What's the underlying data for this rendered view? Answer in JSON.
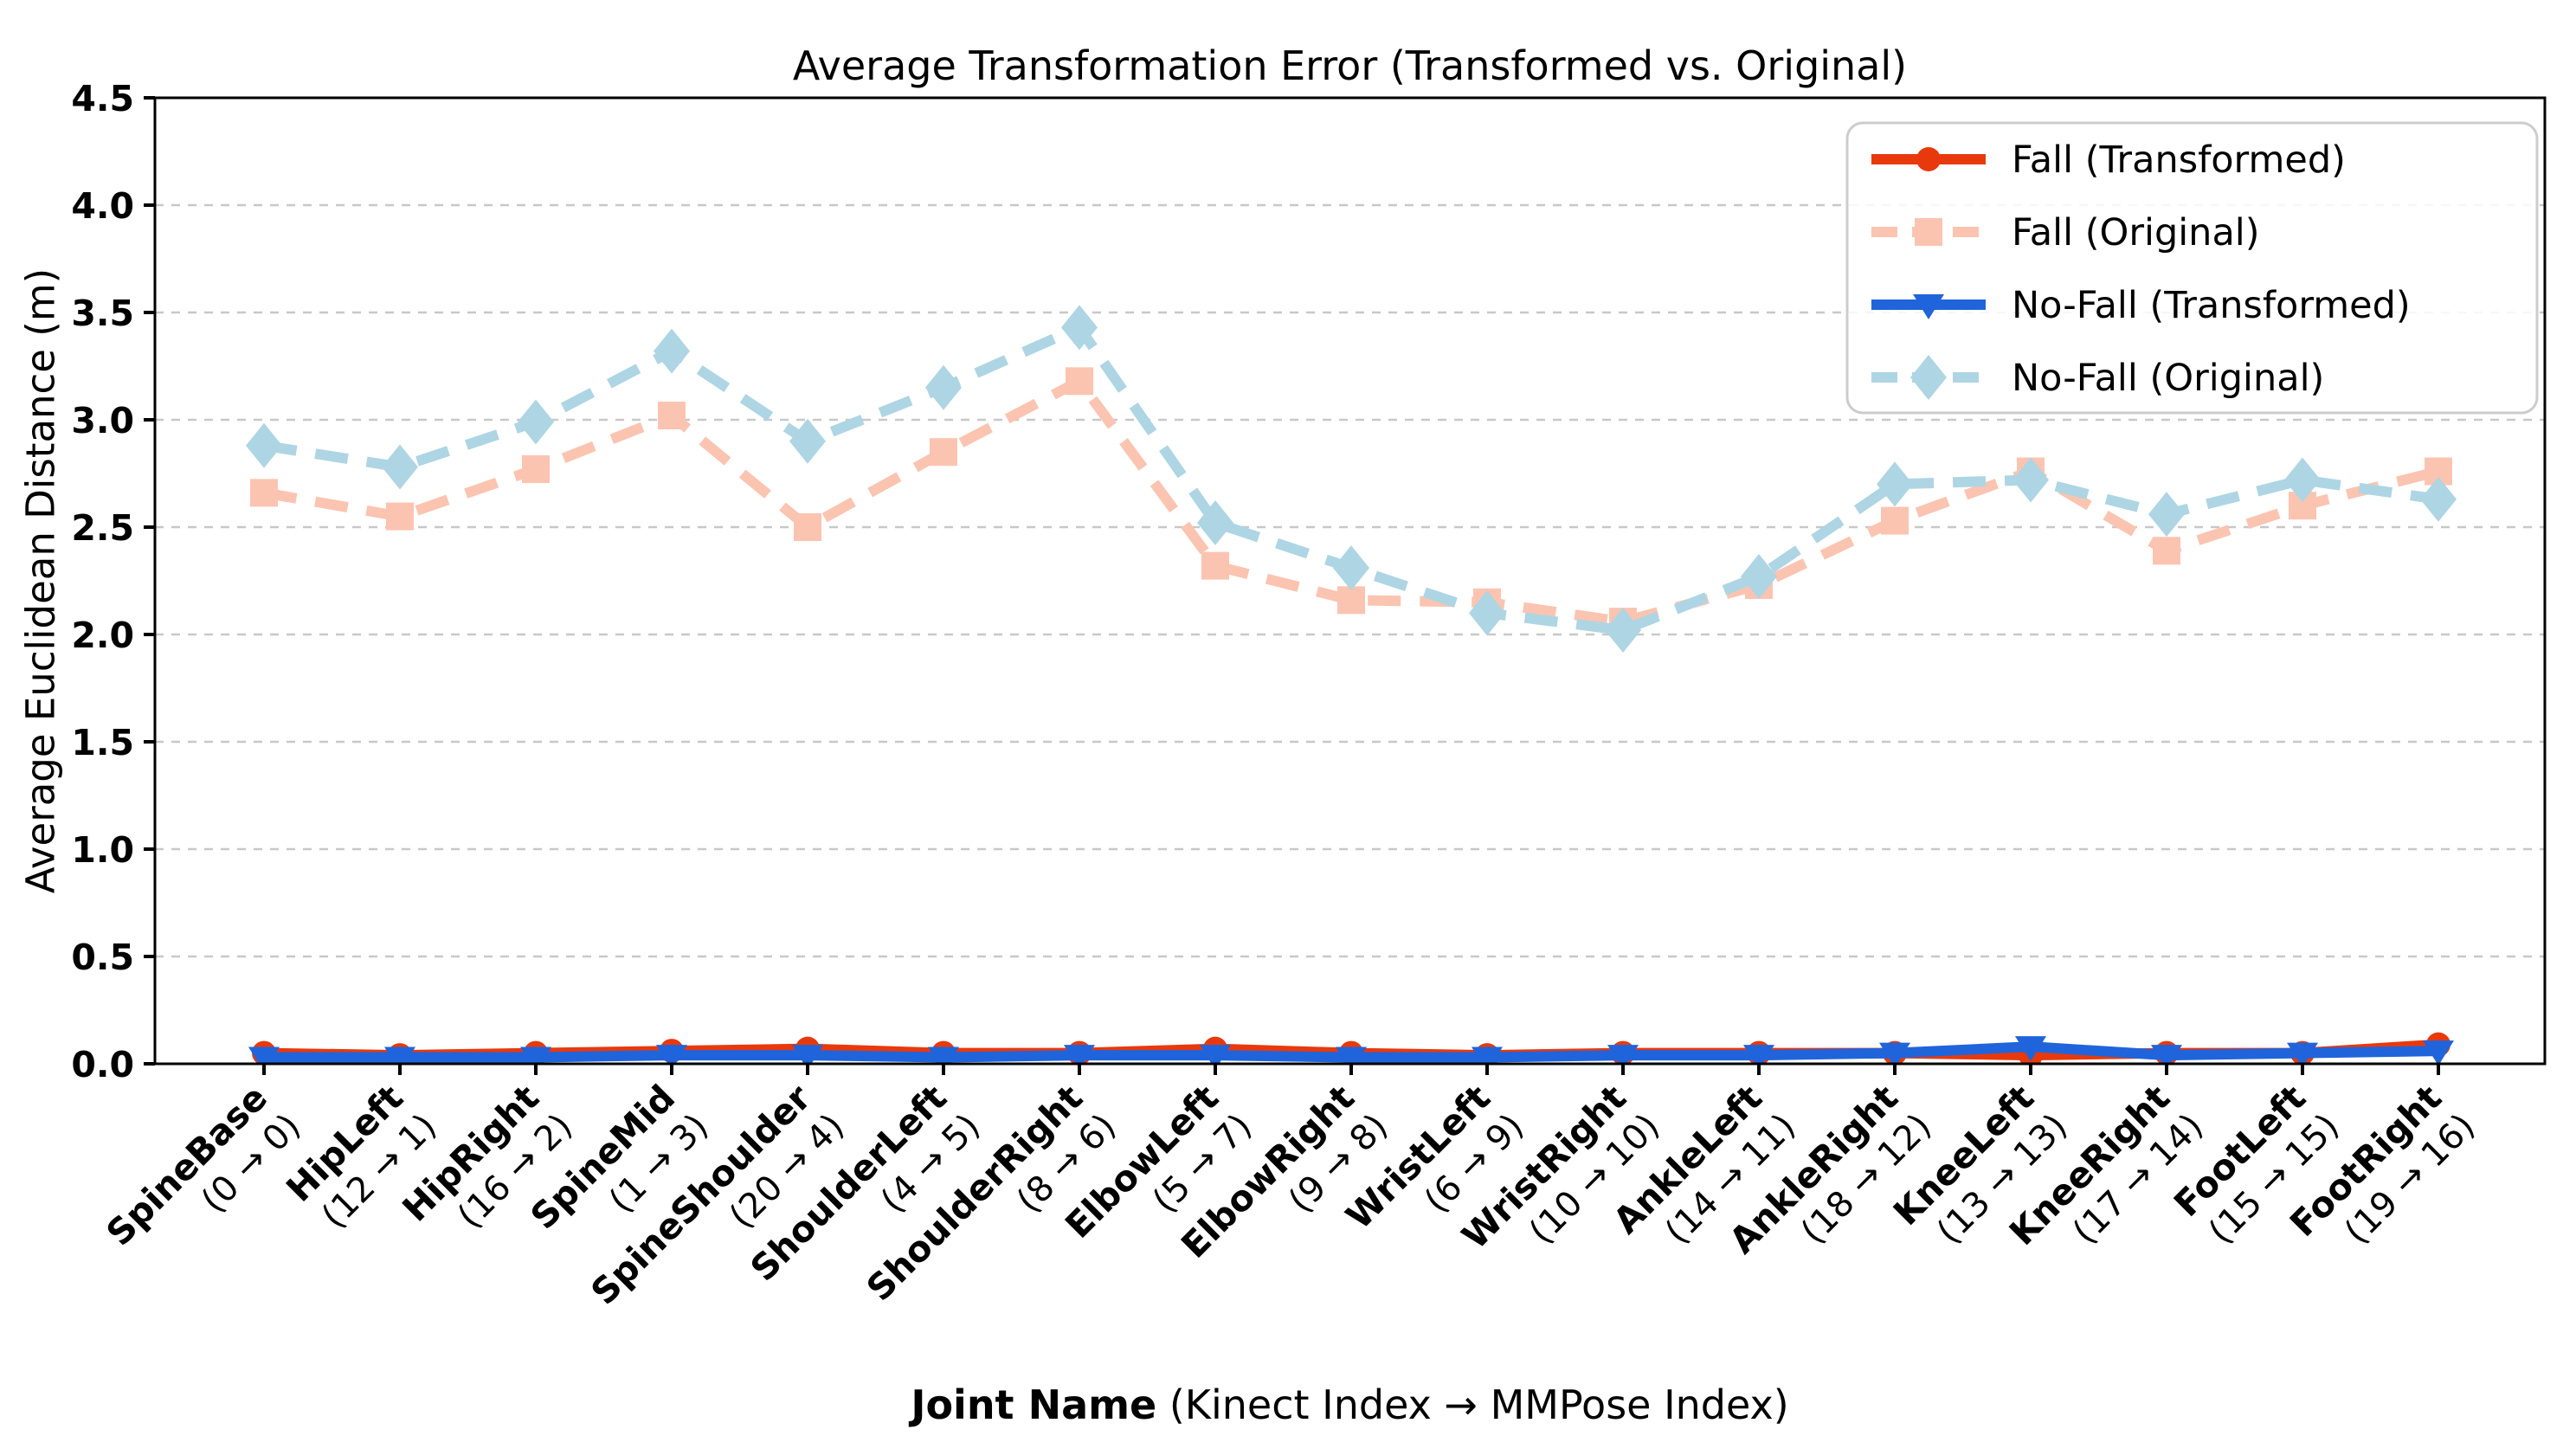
{
  "chart_data": {
    "type": "line",
    "title": "Average Transformation Error (Transformed vs. Original)",
    "ylabel": "Average Euclidean Distance (m)",
    "xlabel_bold": "Joint Name",
    "xlabel_rest": " (Kinect Index → MMPose Index)",
    "ylim": [
      0,
      4.5
    ],
    "yticks": [
      "0.0",
      "0.5",
      "1.0",
      "1.5",
      "2.0",
      "2.5",
      "3.0",
      "3.5",
      "4.0",
      "4.5"
    ],
    "grid": "horizontal-dashed",
    "legend_position": "upper right",
    "colors": {
      "fall_transformed": "#E8390D",
      "fall_original": "#FBC4B1",
      "nofall_transformed": "#2064DB",
      "nofall_original": "#AED5E4",
      "grid": "#C8C8C8",
      "spine": "#000000",
      "legend_border": "#CCCCCC"
    },
    "categories": [
      {
        "joint": "SpineBase",
        "map": "(0 → 0)"
      },
      {
        "joint": "HipLeft",
        "map": "(12 → 1)"
      },
      {
        "joint": "HipRight",
        "map": "(16 → 2)"
      },
      {
        "joint": "SpineMid",
        "map": "(1 → 3)"
      },
      {
        "joint": "SpineShoulder",
        "map": "(20 → 4)"
      },
      {
        "joint": "ShoulderLeft",
        "map": "(4 → 5)"
      },
      {
        "joint": "ShoulderRight",
        "map": "(8 → 6)"
      },
      {
        "joint": "ElbowLeft",
        "map": "(5 → 7)"
      },
      {
        "joint": "ElbowRight",
        "map": "(9 → 8)"
      },
      {
        "joint": "WristLeft",
        "map": "(6 → 9)"
      },
      {
        "joint": "WristRight",
        "map": "(10 → 10)"
      },
      {
        "joint": "AnkleLeft",
        "map": "(14 → 11)"
      },
      {
        "joint": "AnkleRight",
        "map": "(18 → 12)"
      },
      {
        "joint": "KneeLeft",
        "map": "(13 → 13)"
      },
      {
        "joint": "KneeRight",
        "map": "(17 → 14)"
      },
      {
        "joint": "FootLeft",
        "map": "(15 → 15)"
      },
      {
        "joint": "FootRight",
        "map": "(19 → 16)"
      }
    ],
    "series": [
      {
        "name": "Fall (Transformed)",
        "color": "#E8390D",
        "style": "solid",
        "marker": "circle",
        "values": [
          0.05,
          0.04,
          0.05,
          0.06,
          0.07,
          0.05,
          0.05,
          0.07,
          0.05,
          0.04,
          0.05,
          0.05,
          0.05,
          0.04,
          0.05,
          0.05,
          0.09
        ]
      },
      {
        "name": "Fall (Original)",
        "color": "#FBC4B1",
        "style": "dashed",
        "marker": "square",
        "values": [
          2.66,
          2.55,
          2.77,
          3.02,
          2.5,
          2.85,
          3.18,
          2.32,
          2.16,
          2.15,
          2.06,
          2.23,
          2.53,
          2.76,
          2.39,
          2.6,
          2.76
        ]
      },
      {
        "name": "No-Fall (Transformed)",
        "color": "#2064DB",
        "style": "solid",
        "marker": "triangle-down",
        "values": [
          0.03,
          0.03,
          0.03,
          0.04,
          0.04,
          0.03,
          0.04,
          0.04,
          0.03,
          0.03,
          0.04,
          0.04,
          0.05,
          0.08,
          0.04,
          0.05,
          0.06
        ]
      },
      {
        "name": "No-Fall (Original)",
        "color": "#AED5E4",
        "style": "dashed",
        "marker": "diamond",
        "values": [
          2.88,
          2.78,
          2.99,
          3.32,
          2.9,
          3.15,
          3.43,
          2.52,
          2.31,
          2.1,
          2.02,
          2.27,
          2.7,
          2.72,
          2.56,
          2.72,
          2.63
        ]
      }
    ]
  }
}
